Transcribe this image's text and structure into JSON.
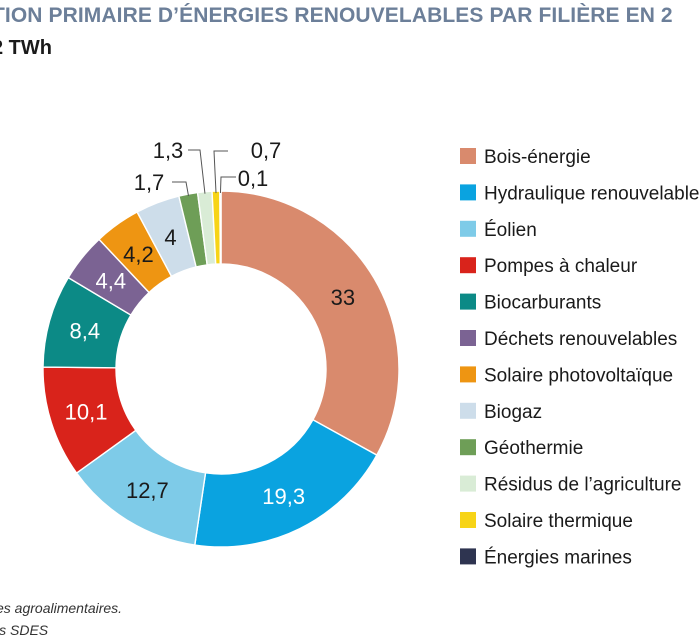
{
  "header": {
    "title": "TION PRIMAIRE D’ÉNERGIES RENOUVELABLES PAR FILIÈRE EN 2",
    "unit": "2 TWh"
  },
  "footer": {
    "note": "es agroalimentaires.",
    "source": "ls SDES"
  },
  "chart_data": {
    "type": "pie",
    "style": "donut",
    "unit": "TWh",
    "legend_position": "right",
    "series": [
      {
        "name": "Bois-énergie",
        "value": 33,
        "label": "33",
        "color": "#d98a6d",
        "label_color": "#1a1a1a"
      },
      {
        "name": "Hydraulique renouvelable",
        "value": 19.3,
        "label": "19,3",
        "color": "#0aa3e0",
        "label_color": "#ffffff"
      },
      {
        "name": "Éolien",
        "value": 12.7,
        "label": "12,7",
        "color": "#7ecbe8",
        "label_color": "#1a1a1a"
      },
      {
        "name": "Pompes à chaleur",
        "value": 10.1,
        "label": "10,1",
        "color": "#d9231b",
        "label_color": "#ffffff"
      },
      {
        "name": "Biocarburants",
        "value": 8.4,
        "label": "8,4",
        "color": "#0c8a86",
        "label_color": "#ffffff"
      },
      {
        "name": "Déchets renouvelables",
        "value": 4.4,
        "label": "4,4",
        "color": "#7b6393",
        "label_color": "#ffffff"
      },
      {
        "name": "Solaire photovoltaïque",
        "value": 4.2,
        "label": "4,2",
        "color": "#ee9512",
        "label_color": "#1a1a1a"
      },
      {
        "name": "Biogaz",
        "value": 4,
        "label": "4",
        "color": "#cdddea",
        "label_color": "#1a1a1a"
      },
      {
        "name": "Géothermie",
        "value": 1.7,
        "label": "1,7",
        "color": "#6e9e57",
        "label_color": "#1a1a1a"
      },
      {
        "name": "Résidus de l’agriculture",
        "value": 1.3,
        "label": "1,3",
        "color": "#d9ecd6",
        "label_color": "#1a1a1a"
      },
      {
        "name": "Solaire thermique",
        "value": 0.7,
        "label": "0,7",
        "color": "#f7d417",
        "label_color": "#1a1a1a"
      },
      {
        "name": "Énergies marines",
        "value": 0.1,
        "label": "0,1",
        "color": "#2e3450",
        "label_color": "#1a1a1a"
      }
    ]
  }
}
